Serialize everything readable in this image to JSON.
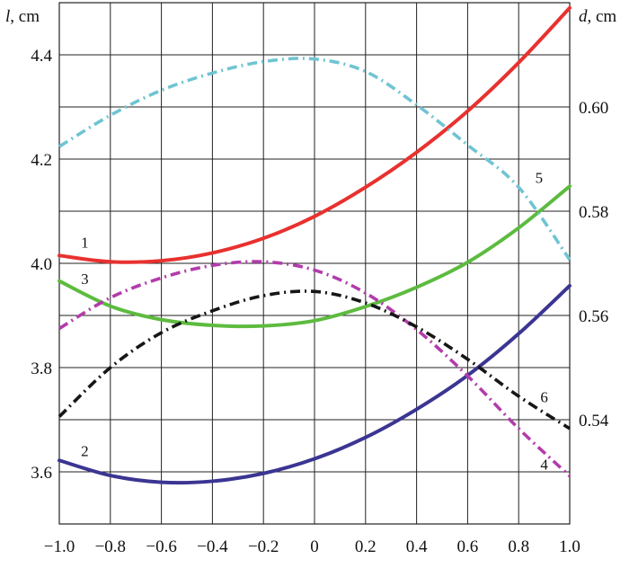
{
  "chart_data": {
    "type": "line",
    "title": "",
    "xlabel": "",
    "xlim": [
      -1.0,
      1.0
    ],
    "x_ticks": [
      "−1.0",
      "−0.8",
      "−0.6",
      "−0.4",
      "−0.2",
      "0",
      "0.2",
      "0.4",
      "0.6",
      "0.8",
      "1.0"
    ],
    "y_left": {
      "label_var": "l",
      "label_unit": ", cm",
      "ylim": [
        3.5,
        4.5
      ],
      "ticks": [
        {
          "value": 3.6,
          "label": "3.6"
        },
        {
          "value": 3.8,
          "label": "3.8"
        },
        {
          "value": 4.0,
          "label": "4.0"
        },
        {
          "value": 4.2,
          "label": "4.2"
        },
        {
          "value": 4.4,
          "label": "4.4"
        }
      ]
    },
    "y_right": {
      "label_var": "d",
      "label_unit": ", cm",
      "ylim": [
        0.52,
        0.62
      ],
      "ticks": [
        {
          "value": 0.54,
          "label": "0.54"
        },
        {
          "value": 0.56,
          "label": "0.56"
        },
        {
          "value": 0.58,
          "label": "0.58"
        },
        {
          "value": 0.6,
          "label": "0.60"
        }
      ]
    },
    "grid": true,
    "series": [
      {
        "label": "1",
        "axis": "left",
        "style": "solid",
        "color": "#e8312f",
        "x": [
          -1.0,
          -0.8,
          -0.6,
          -0.4,
          -0.2,
          0.0,
          0.2,
          0.4,
          0.6,
          0.8,
          1.0
        ],
        "y": [
          4.015,
          4.003,
          4.005,
          4.02,
          4.048,
          4.09,
          4.146,
          4.213,
          4.292,
          4.385,
          4.49
        ],
        "label_x": -0.9,
        "label_y": 4.03
      },
      {
        "label": "2",
        "axis": "left",
        "style": "solid",
        "color": "#3b3592",
        "x": [
          -1.0,
          -0.8,
          -0.6,
          -0.4,
          -0.2,
          0.0,
          0.2,
          0.4,
          0.6,
          0.8,
          1.0
        ],
        "y": [
          3.622,
          3.593,
          3.58,
          3.582,
          3.597,
          3.625,
          3.666,
          3.72,
          3.785,
          3.865,
          3.957
        ],
        "label_x": -0.9,
        "label_y": 3.63
      },
      {
        "label": "3",
        "axis": "left",
        "style": "solid",
        "color": "#5dbb3f",
        "x": [
          -1.0,
          -0.8,
          -0.6,
          -0.4,
          -0.2,
          0.0,
          0.2,
          0.4,
          0.6,
          0.8,
          1.0
        ],
        "y": [
          3.966,
          3.918,
          3.892,
          3.881,
          3.88,
          3.89,
          3.917,
          3.954,
          4.002,
          4.068,
          4.148
        ],
        "label_x": -0.9,
        "label_y": 3.96
      },
      {
        "label": "4",
        "axis": "right",
        "style": "dashdot",
        "color": "#b23cab",
        "x": [
          -1.0,
          -0.8,
          -0.6,
          -0.4,
          -0.2,
          0.0,
          0.2,
          0.4,
          0.6,
          0.8,
          1.0
        ],
        "y": [
          0.5575,
          0.5634,
          0.5672,
          0.5696,
          0.5703,
          0.5687,
          0.5643,
          0.5573,
          0.5484,
          0.5383,
          0.5292
        ],
        "label_x": 0.9,
        "label_y": 0.5304
      },
      {
        "label": "5",
        "axis": "right",
        "style": "dashdot",
        "color": "#6fc4d2",
        "x": [
          -1.0,
          -0.8,
          -0.6,
          -0.4,
          -0.2,
          0.0,
          0.2,
          0.4,
          0.6,
          0.8,
          1.0
        ],
        "y": [
          0.5924,
          0.5984,
          0.6032,
          0.6065,
          0.6087,
          0.6092,
          0.6068,
          0.6004,
          0.5927,
          0.5846,
          0.5707
        ],
        "label_x": 0.88,
        "label_y": 0.5854
      },
      {
        "label": "6",
        "axis": "right",
        "style": "dashdot",
        "color": "#161616",
        "x": [
          -1.0,
          -0.8,
          -0.6,
          -0.4,
          -0.2,
          0.0,
          0.2,
          0.4,
          0.6,
          0.8,
          1.0
        ],
        "y": [
          0.5406,
          0.55,
          0.5567,
          0.5609,
          0.5638,
          0.5646,
          0.5624,
          0.5578,
          0.5516,
          0.5445,
          0.5383
        ],
        "label_x": 0.9,
        "label_y": 0.5434
      }
    ]
  }
}
